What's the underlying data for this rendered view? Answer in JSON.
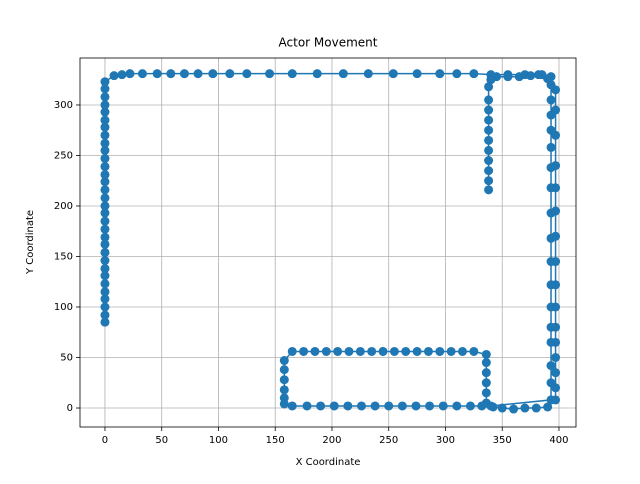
{
  "chart_data": {
    "type": "line",
    "title": "Actor Movement",
    "x_label": "X Coordinate",
    "y_label": "Y Coordinate",
    "color": "#1f77b4",
    "grid": true,
    "markers": true,
    "xlim": [
      -22,
      415
    ],
    "ylim": [
      -18.8,
      346.5
    ],
    "xticks": [
      0,
      50,
      100,
      150,
      200,
      250,
      300,
      350,
      400
    ],
    "yticks": [
      0,
      50,
      100,
      150,
      200,
      250,
      300
    ],
    "x": [
      0,
      0,
      0,
      0,
      0,
      0,
      0,
      0,
      0,
      0,
      0,
      0,
      0,
      0,
      0,
      0,
      0,
      0,
      0,
      0,
      0,
      0,
      0,
      0,
      0,
      0,
      0,
      0,
      0,
      0,
      0,
      0,
      8,
      15,
      22,
      33,
      46,
      58,
      70,
      82,
      95,
      110,
      125,
      145,
      165,
      187,
      210,
      232,
      254,
      275,
      295,
      310,
      325,
      340,
      355,
      370,
      382,
      390,
      397,
      397,
      397,
      397,
      397,
      397,
      397,
      397,
      397,
      397,
      397,
      397,
      397,
      397,
      397,
      397,
      390,
      380,
      370,
      360,
      350,
      342,
      336,
      336,
      336,
      336,
      336,
      336,
      325,
      315,
      305,
      295,
      285,
      275,
      265,
      255,
      245,
      235,
      225,
      215,
      205,
      195,
      185,
      175,
      165,
      158,
      158,
      158,
      158,
      158,
      158,
      165,
      178,
      190,
      202,
      214,
      226,
      238,
      250,
      262,
      274,
      286,
      298,
      310,
      322,
      332,
      340,
      393,
      393,
      393,
      393,
      393,
      393,
      393,
      393,
      393,
      393,
      393,
      393,
      393,
      393,
      393,
      393,
      393,
      393,
      385,
      375,
      365,
      355,
      345,
      340,
      338,
      338,
      338,
      338,
      338,
      338,
      338,
      338,
      338,
      338,
      338
    ],
    "values": [
      85,
      92,
      100,
      108,
      115,
      123,
      131,
      138,
      146,
      154,
      162,
      169,
      177,
      185,
      193,
      200,
      208,
      216,
      224,
      231,
      239,
      247,
      255,
      262,
      270,
      278,
      285,
      293,
      300,
      308,
      316,
      323,
      329,
      330,
      331,
      331,
      331,
      331,
      331,
      331,
      331,
      331,
      331,
      331,
      331,
      331,
      331,
      331,
      331,
      331,
      331,
      331,
      331,
      330,
      330,
      330,
      330,
      326,
      315,
      295,
      270,
      240,
      218,
      195,
      170,
      145,
      122,
      100,
      80,
      65,
      50,
      35,
      20,
      8,
      1,
      0,
      0,
      -1,
      0,
      1,
      5,
      15,
      25,
      35,
      45,
      53,
      56,
      56,
      56,
      56,
      56,
      56,
      56,
      56,
      56,
      56,
      56,
      56,
      56,
      56,
      56,
      56,
      56,
      47,
      38,
      28,
      18,
      10,
      4,
      2,
      2,
      2,
      2,
      2,
      2,
      2,
      2,
      2,
      2,
      2,
      2,
      2,
      2,
      2,
      2,
      8,
      25,
      42,
      65,
      80,
      100,
      122,
      145,
      168,
      193,
      218,
      238,
      258,
      275,
      290,
      305,
      320,
      328,
      330,
      329,
      328,
      328,
      328,
      325,
      318,
      305,
      295,
      285,
      275,
      265,
      255,
      245,
      235,
      225,
      216
    ]
  }
}
